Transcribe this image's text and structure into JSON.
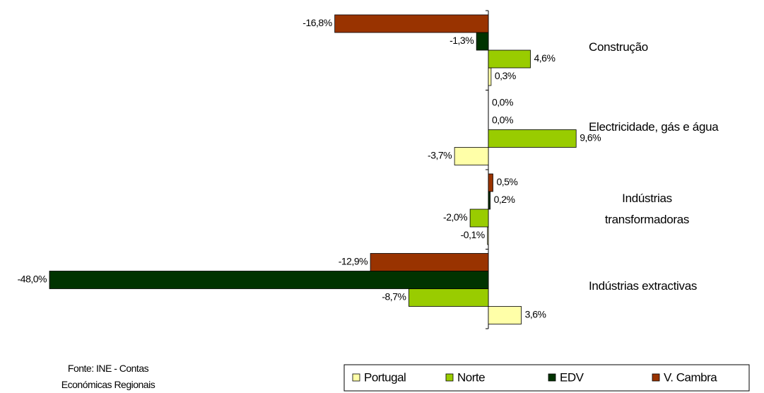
{
  "chart_data": {
    "type": "bar",
    "orientation": "horizontal",
    "categories": [
      "Construção",
      "Electricidade, gás e água",
      "Indústrias transformadoras",
      "Indústrias extractivas"
    ],
    "series": [
      {
        "name": "Portugal",
        "color": "#ffffa8",
        "values": [
          0.3,
          -3.7,
          -0.1,
          3.6
        ],
        "value_labels": [
          "0,3%",
          "-3,7%",
          "-0,1%",
          "3,6%"
        ]
      },
      {
        "name": "Norte",
        "color": "#99cc00",
        "values": [
          4.6,
          9.6,
          -2.0,
          -8.7
        ],
        "value_labels": [
          "4,6%",
          "9,6%",
          "-2,0%",
          "-8,7%"
        ]
      },
      {
        "name": "EDV",
        "color": "#003300",
        "values": [
          -1.3,
          0.0,
          0.2,
          -48.0
        ],
        "value_labels": [
          "-1,3%",
          "0,0%",
          "0,2%",
          "-48,0%"
        ]
      },
      {
        "name": "V. Cambra",
        "color": "#993300",
        "values": [
          -16.8,
          0.0,
          0.5,
          -12.9
        ],
        "value_labels": [
          "-16,8%",
          "0,0%",
          "0,5%",
          "-12,9%"
        ]
      }
    ],
    "source": "Fonte: INE - Contas Económicas Regionais"
  }
}
